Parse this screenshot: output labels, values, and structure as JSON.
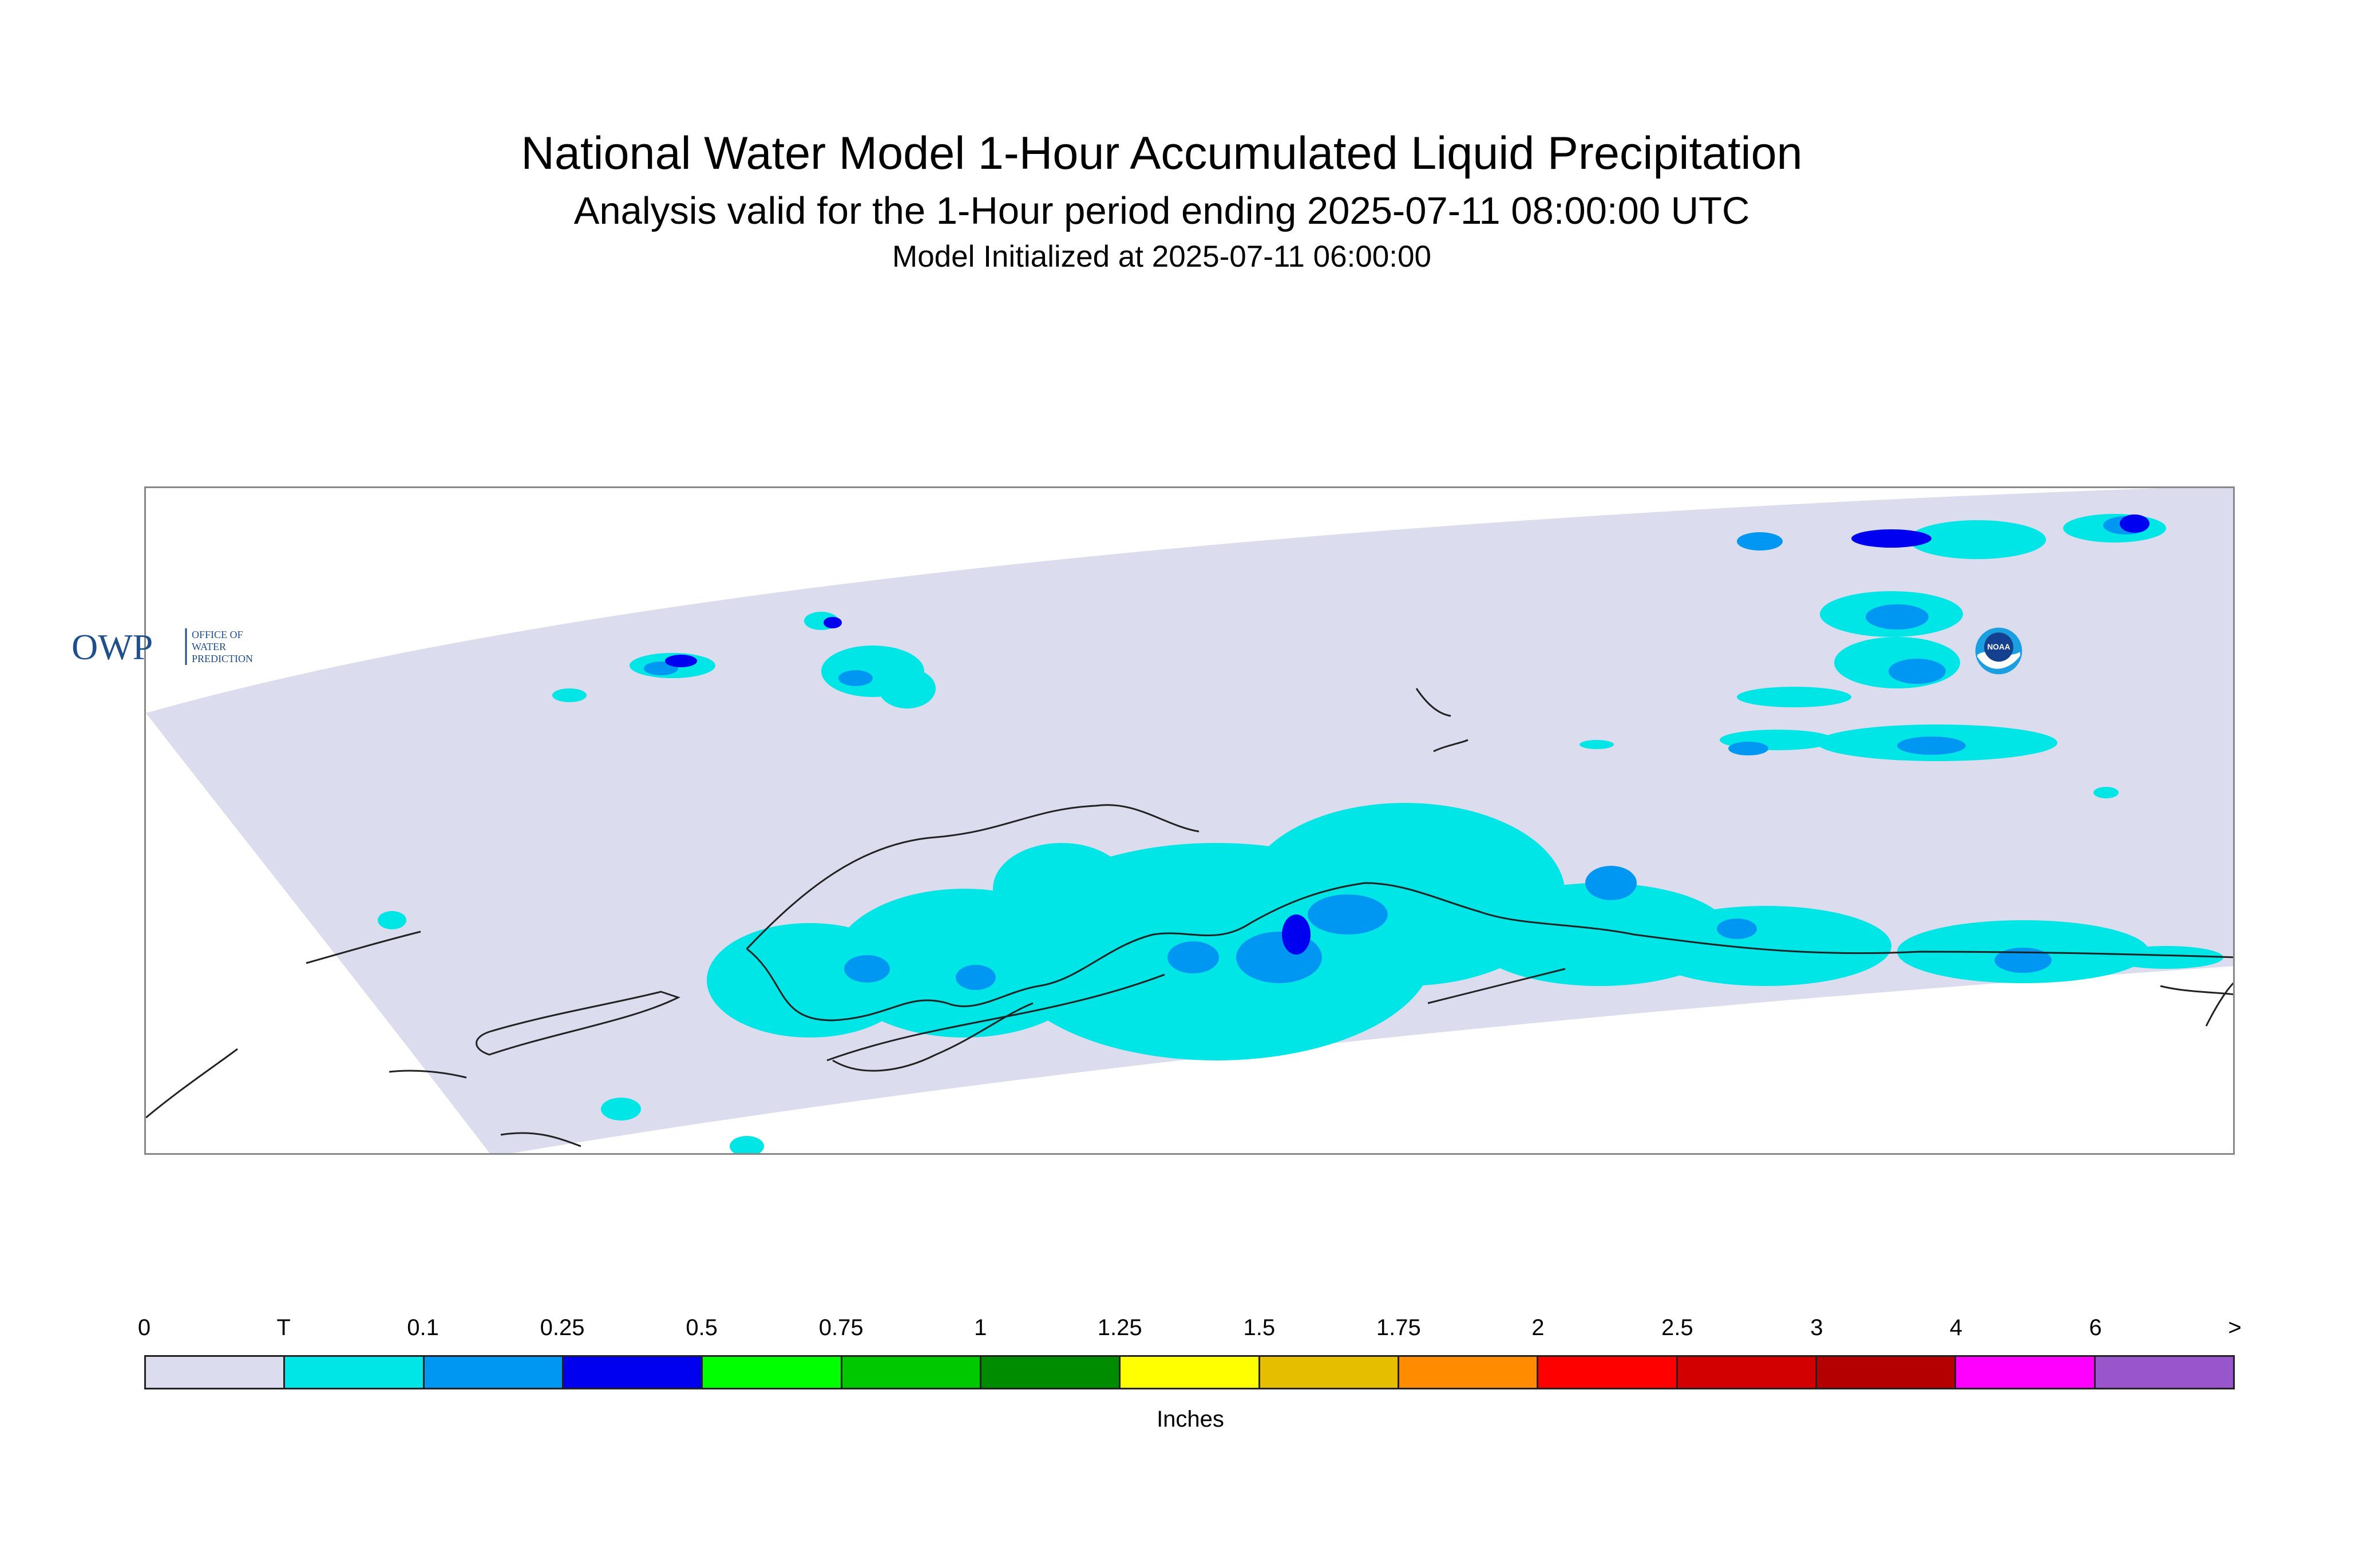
{
  "title": "National Water Model 1-Hour Accumulated Liquid Precipitation",
  "subtitle": "Analysis valid for the 1-Hour period ending 2025-07-11 08:00:00 UTC",
  "init_line": "Model Initialized at 2025-07-11 06:00:00",
  "legend": {
    "units": "Inches",
    "tick_labels": [
      "0",
      "T",
      "0.1",
      "0.25",
      "0.5",
      "0.75",
      "1",
      "1.25",
      "1.5",
      "1.75",
      "2",
      "2.5",
      "3",
      "4",
      "6",
      ">"
    ],
    "colors": [
      "#dcdcef",
      "#00e5e5",
      "#0097f2",
      "#0000f0",
      "#00ff00",
      "#00c800",
      "#008c00",
      "#ffff00",
      "#e6be00",
      "#ff8c00",
      "#ff0000",
      "#d20000",
      "#b40000",
      "#ff00ff",
      "#9955cc"
    ]
  },
  "map": {
    "domain_fill": "#dcdcef",
    "coastline_color": "#222222",
    "precip_colors": {
      "trace": "#00e5e5",
      "light": "#0097f2",
      "moderate": "#0000f0"
    }
  },
  "logos": {
    "owp_text": "OWP",
    "owp_sub": [
      "OFFICE OF",
      "WATER",
      "PREDICTION"
    ],
    "noaa_text": "NOAA"
  }
}
